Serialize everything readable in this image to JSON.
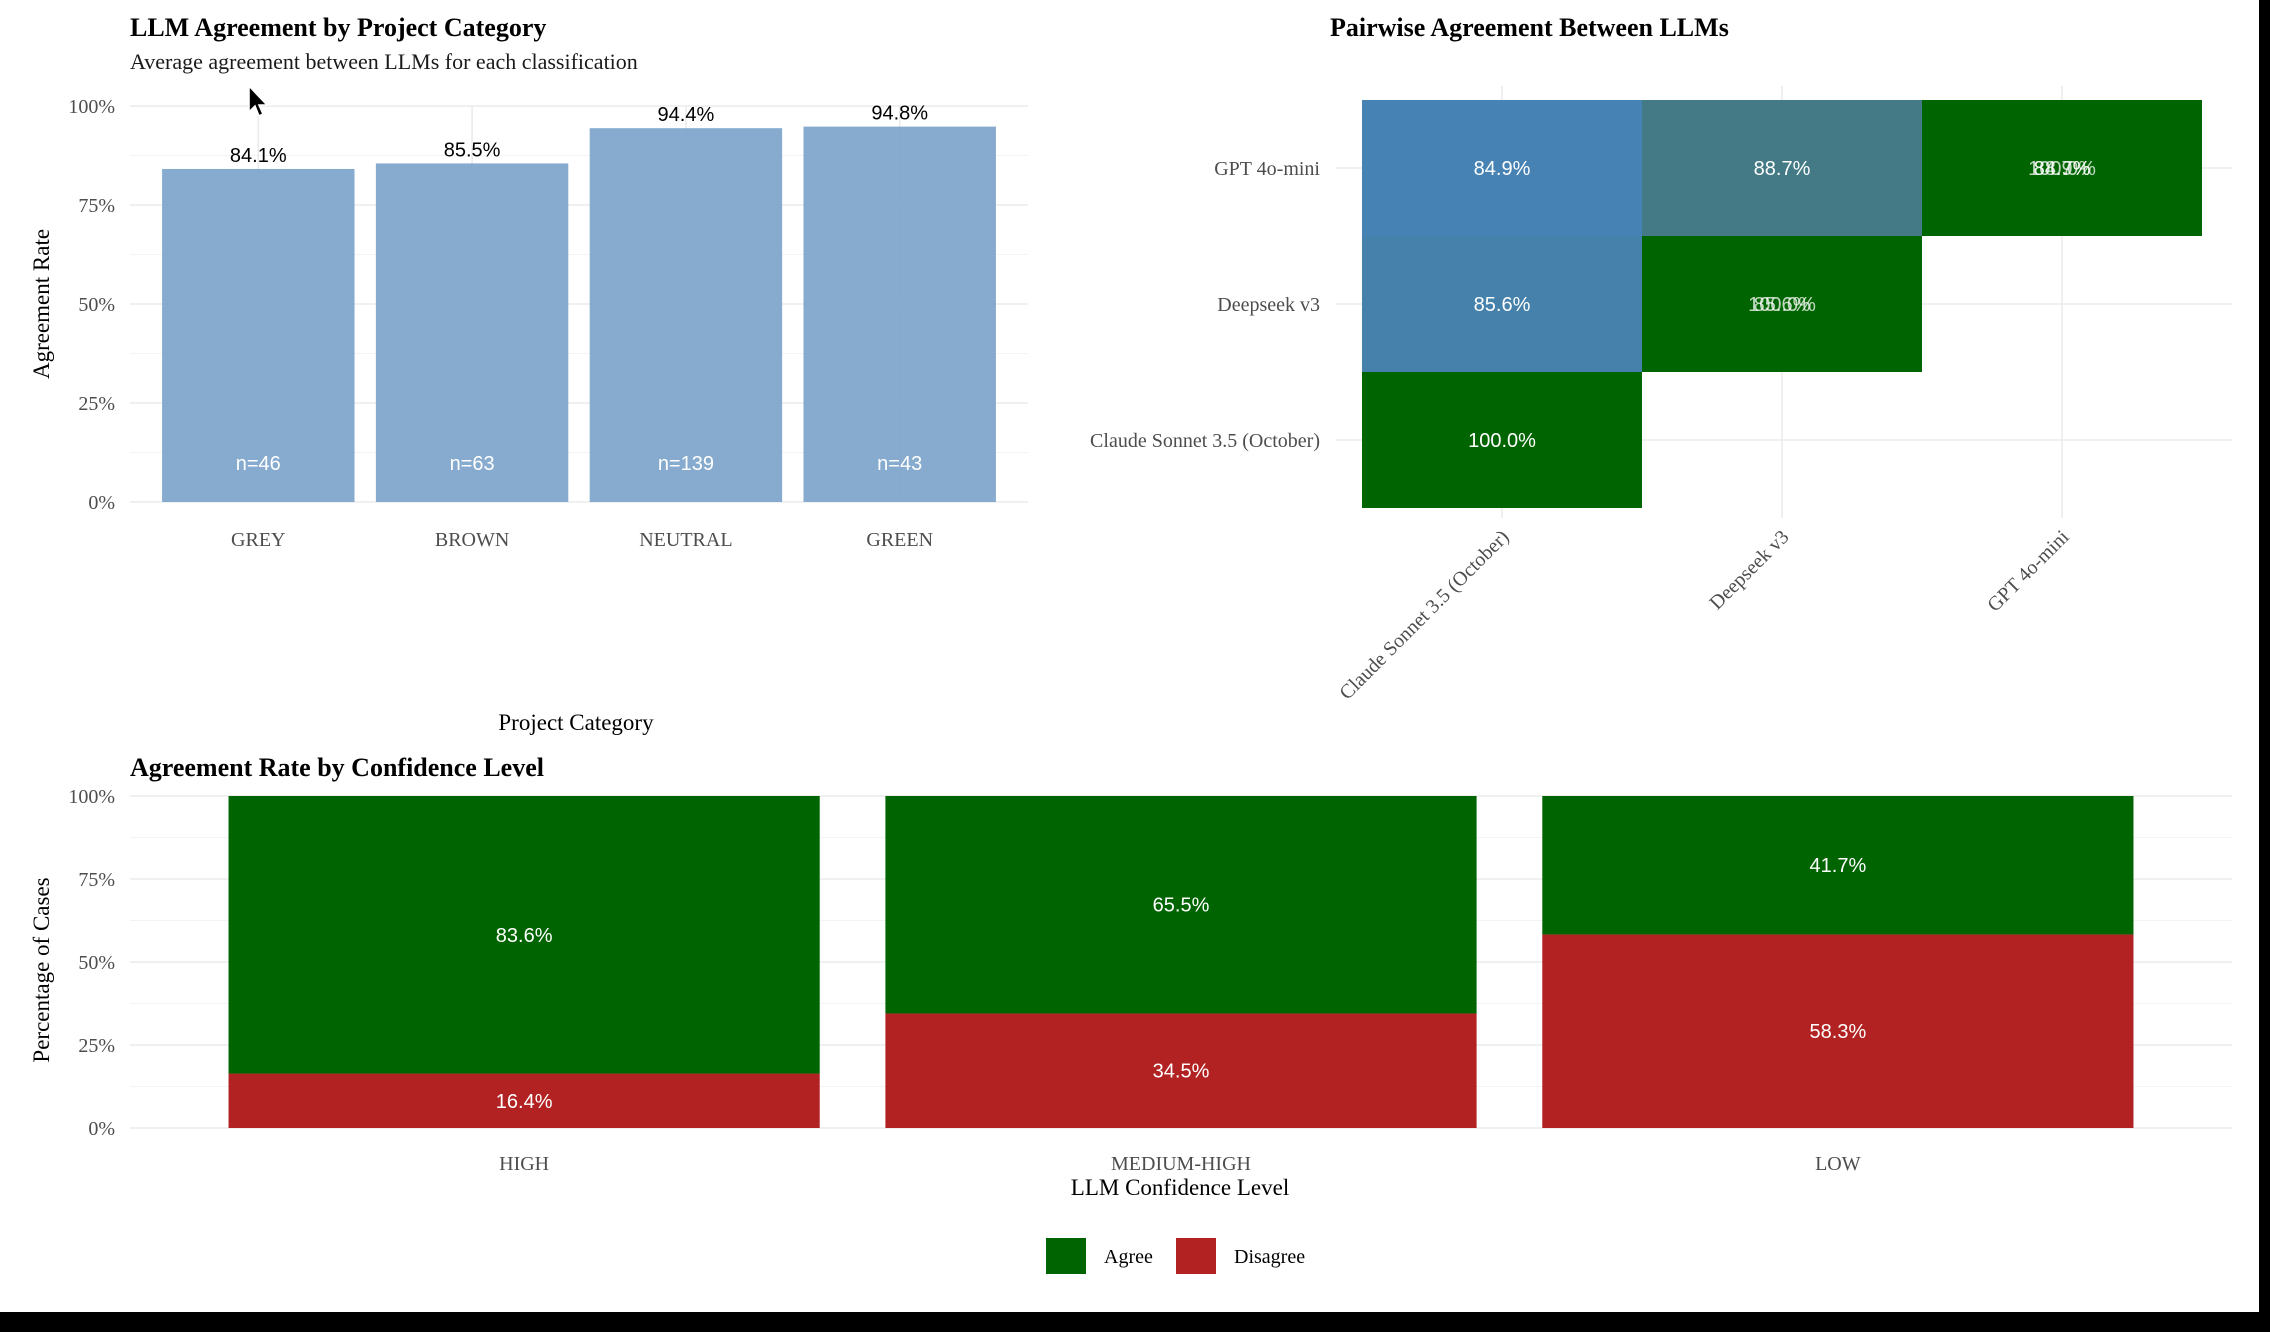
{
  "chart_data": [
    {
      "type": "bar",
      "title": "LLM Agreement by Project Category",
      "subtitle": "Average agreement between LLMs for each classification",
      "xlabel": "Project Category",
      "ylabel": "Agreement Rate",
      "categories": [
        "GREY",
        "BROWN",
        "NEUTRAL",
        "GREEN"
      ],
      "values": [
        84.1,
        85.5,
        94.4,
        94.8
      ],
      "value_labels": [
        "84.1%",
        "85.5%",
        "94.4%",
        "94.8%"
      ],
      "counts": [
        "n=46",
        "n=63",
        "n=139",
        "n=43"
      ],
      "ylim": [
        0,
        100
      ],
      "yticks": [
        "0%",
        "25%",
        "50%",
        "75%",
        "100%"
      ],
      "bar_color": "#7fa6cc",
      "grid": true
    },
    {
      "type": "heatmap",
      "title": "Pairwise Agreement Between LLMs",
      "x_categories": [
        "Claude Sonnet 3.5 (October)",
        "Deepseek v3",
        "GPT 4o-mini"
      ],
      "y_categories": [
        "Claude Sonnet 3.5 (October)",
        "Deepseek v3",
        "GPT 4o-mini"
      ],
      "cells": [
        {
          "x": "Claude Sonnet 3.5 (October)",
          "y": "Claude Sonnet 3.5 (October)",
          "value": 100.0,
          "labels": [
            "100.0%"
          ]
        },
        {
          "x": "Claude Sonnet 3.5 (October)",
          "y": "Deepseek v3",
          "value": 85.6,
          "labels": [
            "85.6%"
          ]
        },
        {
          "x": "Claude Sonnet 3.5 (October)",
          "y": "GPT 4o-mini",
          "value": 84.9,
          "labels": [
            "84.9%"
          ]
        },
        {
          "x": "Deepseek v3",
          "y": "Deepseek v3",
          "value": 100.0,
          "labels": [
            "85.6%",
            "100.0%"
          ]
        },
        {
          "x": "Deepseek v3",
          "y": "GPT 4o-mini",
          "value": 88.7,
          "labels": [
            "88.7%"
          ]
        },
        {
          "x": "GPT 4o-mini",
          "y": "GPT 4o-mini",
          "value": 100.0,
          "labels": [
            "84.9%",
            "88.7%",
            "100.0%"
          ]
        }
      ],
      "colors": {
        "diagonal": "#006400",
        "low": "#4682b4",
        "high": "#437a85"
      },
      "grid": true
    },
    {
      "type": "bar",
      "stacked": true,
      "title": "Agreement Rate by Confidence Level",
      "xlabel": "LLM Confidence Level",
      "ylabel": "Percentage of Cases",
      "categories": [
        "HIGH",
        "MEDIUM-HIGH",
        "LOW"
      ],
      "series": [
        {
          "name": "Disagree",
          "values": [
            16.4,
            34.5,
            58.3
          ],
          "labels": [
            "16.4%",
            "34.5%",
            "58.3%"
          ],
          "color": "#b22222"
        },
        {
          "name": "Agree",
          "values": [
            83.6,
            65.5,
            41.7
          ],
          "labels": [
            "83.6%",
            "65.5%",
            "41.7%"
          ],
          "color": "#006400"
        }
      ],
      "legend_order": [
        "Agree",
        "Disagree"
      ],
      "ylim": [
        0,
        100
      ],
      "yticks": [
        "0%",
        "25%",
        "50%",
        "75%",
        "100%"
      ],
      "legend_position": "bottom",
      "grid": true
    }
  ]
}
